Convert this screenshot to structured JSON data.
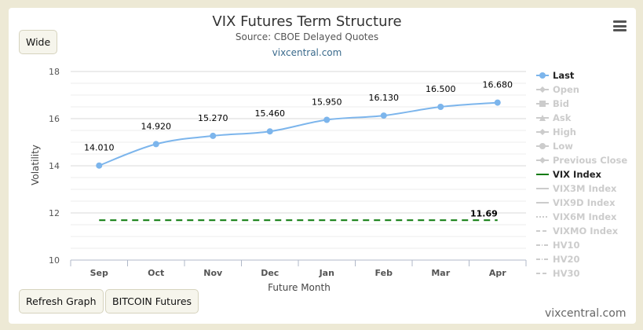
{
  "header": {
    "title": "VIX Futures Term Structure",
    "subtitle": "Source: CBOE Delayed Quotes",
    "link": "vixcentral.com"
  },
  "buttons": {
    "wide": "Wide",
    "refresh": "Refresh Graph",
    "bitcoin": "BITCOIN Futures"
  },
  "footer": {
    "watermark": "vixcentral.com"
  },
  "icons": {
    "menu": "hamburger-menu-icon"
  },
  "colors": {
    "last_series": "#7cb5ec",
    "vix_index": "#0a7a0a",
    "legend_off": "#cccccc"
  },
  "legend": [
    {
      "label": "Last",
      "state": "on",
      "symbol": "line-circle",
      "color": "#7cb5ec"
    },
    {
      "label": "Open",
      "state": "off",
      "symbol": "line-diamond"
    },
    {
      "label": "Bid",
      "state": "off",
      "symbol": "line-square"
    },
    {
      "label": "Ask",
      "state": "off",
      "symbol": "line-triangle"
    },
    {
      "label": "High",
      "state": "off",
      "symbol": "line-diamond"
    },
    {
      "label": "Low",
      "state": "off",
      "symbol": "line-circle"
    },
    {
      "label": "Previous Close",
      "state": "off",
      "symbol": "line-diamond"
    },
    {
      "label": "VIX Index",
      "state": "on",
      "symbol": "line",
      "color": "#0a7a0a"
    },
    {
      "label": "VIX3M Index",
      "state": "off",
      "symbol": "line"
    },
    {
      "label": "VIX9D Index",
      "state": "off",
      "symbol": "line"
    },
    {
      "label": "VIX6M Index",
      "state": "off",
      "symbol": "dotted"
    },
    {
      "label": "VIXMO Index",
      "state": "off",
      "symbol": "dash"
    },
    {
      "label": "HV10",
      "state": "off",
      "symbol": "dash-dot"
    },
    {
      "label": "HV20",
      "state": "off",
      "symbol": "dash-dot"
    },
    {
      "label": "HV30",
      "state": "off",
      "symbol": "dash"
    }
  ],
  "chart_data": {
    "type": "line",
    "xlabel": "Future Month",
    "ylabel": "Volatility",
    "categories": [
      "Sep",
      "Oct",
      "Nov",
      "Dec",
      "Jan",
      "Feb",
      "Mar",
      "Apr"
    ],
    "ylim": [
      10,
      18
    ],
    "yticks": [
      10,
      12,
      14,
      16,
      18
    ],
    "grid": true,
    "legend_position": "right",
    "series": [
      {
        "name": "Last",
        "values": [
          14.01,
          14.92,
          15.27,
          15.46,
          15.95,
          16.13,
          16.5,
          16.68
        ],
        "labels": [
          "14.010",
          "14.920",
          "15.270",
          "15.460",
          "15.950",
          "16.130",
          "16.500",
          "16.680"
        ]
      },
      {
        "name": "VIX Index",
        "values": [
          11.69,
          11.69,
          11.69,
          11.69,
          11.69,
          11.69,
          11.69,
          11.69
        ],
        "end_label": "11.69"
      }
    ]
  }
}
